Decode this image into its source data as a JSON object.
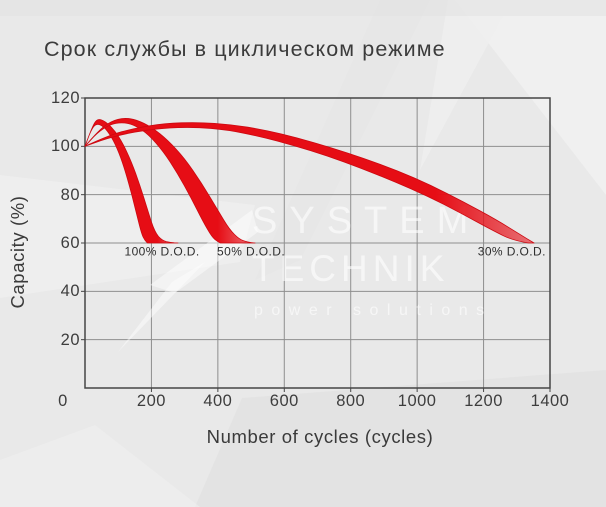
{
  "title": "Срок службы в циклическом режиме",
  "watermark": {
    "line1": "SYSTEM",
    "line2": "TECHNIK",
    "line3": "power solutions"
  },
  "chart_data": {
    "type": "area",
    "title": "Срок службы в циклическом режиме",
    "xlabel": "Number of cycles (cycles)",
    "ylabel": "Capacity (%)",
    "xlim": [
      0,
      1400
    ],
    "ylim": [
      0,
      120
    ],
    "x_ticks": [
      0,
      200,
      400,
      600,
      800,
      1000,
      1200,
      1400
    ],
    "y_ticks": [
      0,
      20,
      40,
      60,
      80,
      100,
      120
    ],
    "grid": true,
    "legend_position": "inline-labels",
    "series_color": "#e60d15",
    "series_edge_color": "#cc0911",
    "label_color": "#2e2e2e",
    "series": [
      {
        "name": "100% D.O.D.",
        "key": "100-dod",
        "label_anchor": {
          "x": 232,
          "y": 56.5
        },
        "upper": [
          [
            0,
            100
          ],
          [
            20,
            107.5
          ],
          [
            36,
            111.5
          ],
          [
            60,
            110.5
          ],
          [
            90,
            106.5
          ],
          [
            115,
            101
          ],
          [
            140,
            93.5
          ],
          [
            165,
            84
          ],
          [
            190,
            73
          ],
          [
            210,
            64.5
          ],
          [
            232,
            61
          ],
          [
            258,
            60.2
          ],
          [
            280,
            60
          ]
        ],
        "lower": [
          [
            0,
            100
          ],
          [
            16,
            106
          ],
          [
            32,
            109.5
          ],
          [
            55,
            108.5
          ],
          [
            80,
            104
          ],
          [
            102,
            97.5
          ],
          [
            122,
            89.5
          ],
          [
            142,
            79.5
          ],
          [
            158,
            70.5
          ],
          [
            170,
            64
          ],
          [
            180,
            61
          ],
          [
            188,
            60
          ]
        ]
      },
      {
        "name": "50% D.O.D.",
        "key": "50-dod",
        "label_anchor": {
          "x": 500,
          "y": 56.5
        },
        "upper": [
          [
            0,
            100
          ],
          [
            40,
            106.5
          ],
          [
            80,
            110.5
          ],
          [
            118,
            111.8
          ],
          [
            155,
            111
          ],
          [
            200,
            108
          ],
          [
            250,
            102.5
          ],
          [
            300,
            95
          ],
          [
            350,
            85
          ],
          [
            400,
            73.5
          ],
          [
            435,
            65.5
          ],
          [
            465,
            61.5
          ],
          [
            490,
            60.3
          ],
          [
            512,
            60
          ]
        ],
        "lower": [
          [
            0,
            100
          ],
          [
            36,
            105.5
          ],
          [
            74,
            109
          ],
          [
            112,
            110
          ],
          [
            150,
            108.8
          ],
          [
            192,
            104.8
          ],
          [
            235,
            98
          ],
          [
            278,
            89
          ],
          [
            320,
            78.5
          ],
          [
            355,
            69
          ],
          [
            382,
            62.5
          ],
          [
            400,
            60.5
          ],
          [
            408,
            60
          ]
        ]
      },
      {
        "name": "30% D.O.D.",
        "key": "30-dod",
        "label_anchor": {
          "x": 1285,
          "y": 56.5
        },
        "upper": [
          [
            0,
            100
          ],
          [
            70,
            104.5
          ],
          [
            150,
            107.5
          ],
          [
            240,
            109.5
          ],
          [
            340,
            110
          ],
          [
            440,
            109
          ],
          [
            540,
            106.8
          ],
          [
            640,
            103.5
          ],
          [
            740,
            99.5
          ],
          [
            840,
            95
          ],
          [
            940,
            90
          ],
          [
            1040,
            84
          ],
          [
            1140,
            77
          ],
          [
            1240,
            69.5
          ],
          [
            1310,
            63.5
          ],
          [
            1352,
            60
          ]
        ],
        "lower": [
          [
            0,
            100
          ],
          [
            64,
            103.2
          ],
          [
            140,
            105.8
          ],
          [
            230,
            107.5
          ],
          [
            330,
            108
          ],
          [
            430,
            106.8
          ],
          [
            530,
            104
          ],
          [
            630,
            100.3
          ],
          [
            730,
            96
          ],
          [
            830,
            91
          ],
          [
            930,
            85.5
          ],
          [
            1030,
            79.5
          ],
          [
            1130,
            72.5
          ],
          [
            1230,
            65
          ],
          [
            1290,
            61
          ],
          [
            1335,
            60
          ]
        ]
      }
    ]
  },
  "colors": {
    "background": "#e9e9e9",
    "grid": "#8e8e8e",
    "border": "#454545",
    "text": "#3a3a3a",
    "watermark": "#ffffff",
    "red": "#e60d15"
  }
}
